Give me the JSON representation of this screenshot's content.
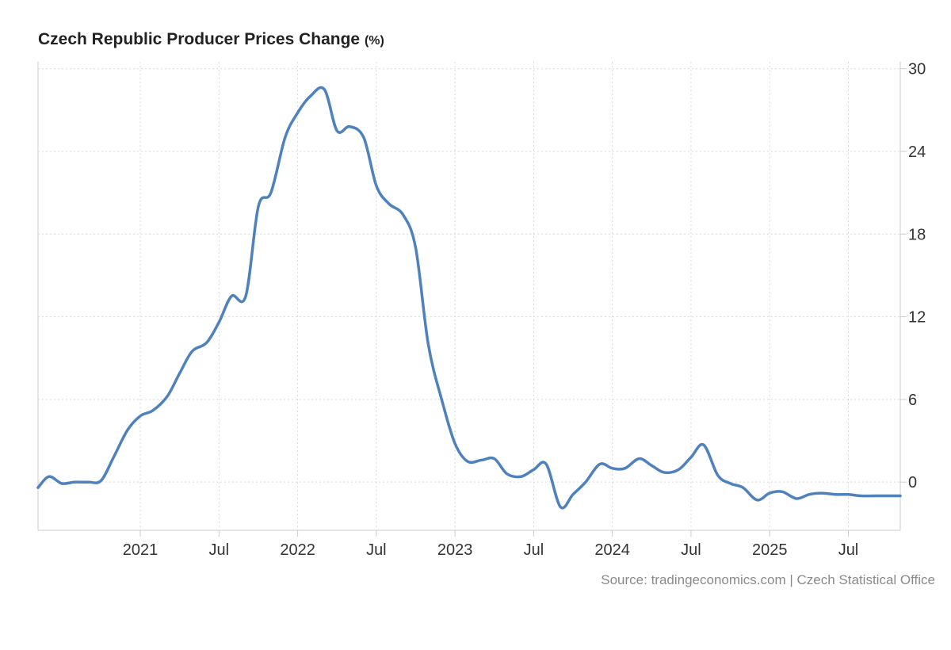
{
  "title": {
    "main": "Czech Republic Producer Prices Change",
    "unit": "(%)"
  },
  "source": "Source: tradingeconomics.com | Czech Statistical Office",
  "colors": {
    "line": "#4f81bd",
    "grid": "#d9d9d9",
    "axis": "#cccccc"
  },
  "chart_data": {
    "type": "line",
    "title": "Czech Republic Producer Prices Change (%)",
    "xlabel": "",
    "ylabel": "",
    "ylim": [
      -5,
      30.5
    ],
    "xlim": [
      2020.35,
      2025.83
    ],
    "grid": true,
    "y_axis_position": "right",
    "y_ticks": [
      0,
      6,
      12,
      18,
      24,
      30
    ],
    "x_ticks": [
      {
        "label": "2021",
        "value": 2021.0
      },
      {
        "label": "Jul",
        "value": 2021.5
      },
      {
        "label": "2022",
        "value": 2022.0
      },
      {
        "label": "Jul",
        "value": 2022.5
      },
      {
        "label": "2023",
        "value": 2023.0
      },
      {
        "label": "Jul",
        "value": 2023.5
      },
      {
        "label": "2024",
        "value": 2024.0
      },
      {
        "label": "Jul",
        "value": 2024.5
      },
      {
        "label": "2025",
        "value": 2025.0
      },
      {
        "label": "Jul",
        "value": 2025.5
      }
    ],
    "series": [
      {
        "name": "Producer Prices Change",
        "points": [
          [
            2020.35,
            -0.4
          ],
          [
            2020.42,
            0.4
          ],
          [
            2020.5,
            -0.1
          ],
          [
            2020.58,
            0.0
          ],
          [
            2020.67,
            0.0
          ],
          [
            2020.75,
            0.1
          ],
          [
            2020.83,
            1.8
          ],
          [
            2020.92,
            3.8
          ],
          [
            2021.0,
            4.8
          ],
          [
            2021.08,
            5.2
          ],
          [
            2021.17,
            6.2
          ],
          [
            2021.25,
            7.9
          ],
          [
            2021.33,
            9.5
          ],
          [
            2021.42,
            10.1
          ],
          [
            2021.5,
            11.6
          ],
          [
            2021.58,
            13.5
          ],
          [
            2021.67,
            13.5
          ],
          [
            2021.75,
            20.0
          ],
          [
            2021.83,
            21.0
          ],
          [
            2021.92,
            25.0
          ],
          [
            2022.0,
            26.8
          ],
          [
            2022.08,
            28.0
          ],
          [
            2022.17,
            28.5
          ],
          [
            2022.25,
            25.5
          ],
          [
            2022.33,
            25.8
          ],
          [
            2022.42,
            25.0
          ],
          [
            2022.5,
            21.5
          ],
          [
            2022.58,
            20.2
          ],
          [
            2022.67,
            19.4
          ],
          [
            2022.75,
            17.0
          ],
          [
            2022.83,
            10.0
          ],
          [
            2022.92,
            5.8
          ],
          [
            2023.0,
            2.8
          ],
          [
            2023.08,
            1.5
          ],
          [
            2023.17,
            1.6
          ],
          [
            2023.25,
            1.7
          ],
          [
            2023.33,
            0.6
          ],
          [
            2023.42,
            0.4
          ],
          [
            2023.5,
            0.9
          ],
          [
            2023.58,
            1.3
          ],
          [
            2023.67,
            -1.8
          ],
          [
            2023.75,
            -0.9
          ],
          [
            2023.83,
            0.0
          ],
          [
            2023.92,
            1.3
          ],
          [
            2024.0,
            1.0
          ],
          [
            2024.08,
            1.0
          ],
          [
            2024.17,
            1.7
          ],
          [
            2024.25,
            1.2
          ],
          [
            2024.33,
            0.7
          ],
          [
            2024.42,
            0.9
          ],
          [
            2024.5,
            1.8
          ],
          [
            2024.58,
            2.7
          ],
          [
            2024.67,
            0.5
          ],
          [
            2024.75,
            -0.1
          ],
          [
            2024.83,
            -0.4
          ],
          [
            2024.92,
            -1.3
          ],
          [
            2025.0,
            -0.8
          ],
          [
            2025.08,
            -0.7
          ],
          [
            2025.17,
            -1.2
          ],
          [
            2025.25,
            -0.9
          ],
          [
            2025.33,
            -0.8
          ],
          [
            2025.42,
            -0.9
          ],
          [
            2025.5,
            -0.9
          ],
          [
            2025.58,
            -1.0
          ],
          [
            2025.67,
            -1.0
          ],
          [
            2025.75,
            -1.0
          ],
          [
            2025.83,
            -1.0
          ]
        ]
      }
    ]
  }
}
